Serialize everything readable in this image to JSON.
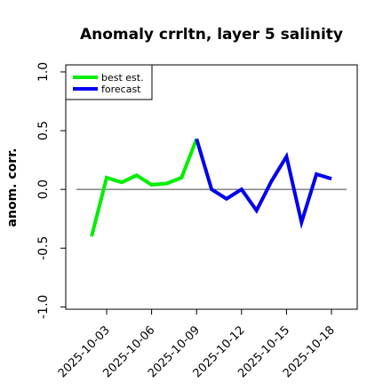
{
  "chart_data": {
    "type": "line",
    "title": "Anomaly crrltn, layer 5 salinity",
    "ylabel": "anom. corr.",
    "xlabel": "",
    "ylim": [
      -1.0,
      1.0
    ],
    "yticks": [
      "-1.0",
      "-0.5",
      "0.0",
      "0.5",
      "1.0"
    ],
    "x_ticks": [
      "2025-10-03",
      "2025-10-06",
      "2025-10-09",
      "2025-10-12",
      "2025-10-15",
      "2025-10-18"
    ],
    "highlight_tick": "2025-10-09",
    "highlight_color": "#228B22",
    "reference_line": 0.0,
    "legend_position": "top-left",
    "series": [
      {
        "name": "best est.",
        "color": "#00ee00",
        "x": [
          "2025-10-02",
          "2025-10-03",
          "2025-10-04",
          "2025-10-05",
          "2025-10-06",
          "2025-10-07",
          "2025-10-08",
          "2025-10-09"
        ],
        "values": [
          -0.4,
          0.1,
          0.06,
          0.12,
          0.04,
          0.05,
          0.1,
          0.43
        ]
      },
      {
        "name": "forecast",
        "color": "#0000ee",
        "x": [
          "2025-10-09",
          "2025-10-10",
          "2025-10-11",
          "2025-10-12",
          "2025-10-13",
          "2025-10-14",
          "2025-10-15",
          "2025-10-16",
          "2025-10-17",
          "2025-10-18"
        ],
        "values": [
          0.43,
          0.0,
          -0.08,
          0.0,
          -0.18,
          0.07,
          0.28,
          -0.28,
          0.13,
          0.09
        ]
      }
    ]
  }
}
